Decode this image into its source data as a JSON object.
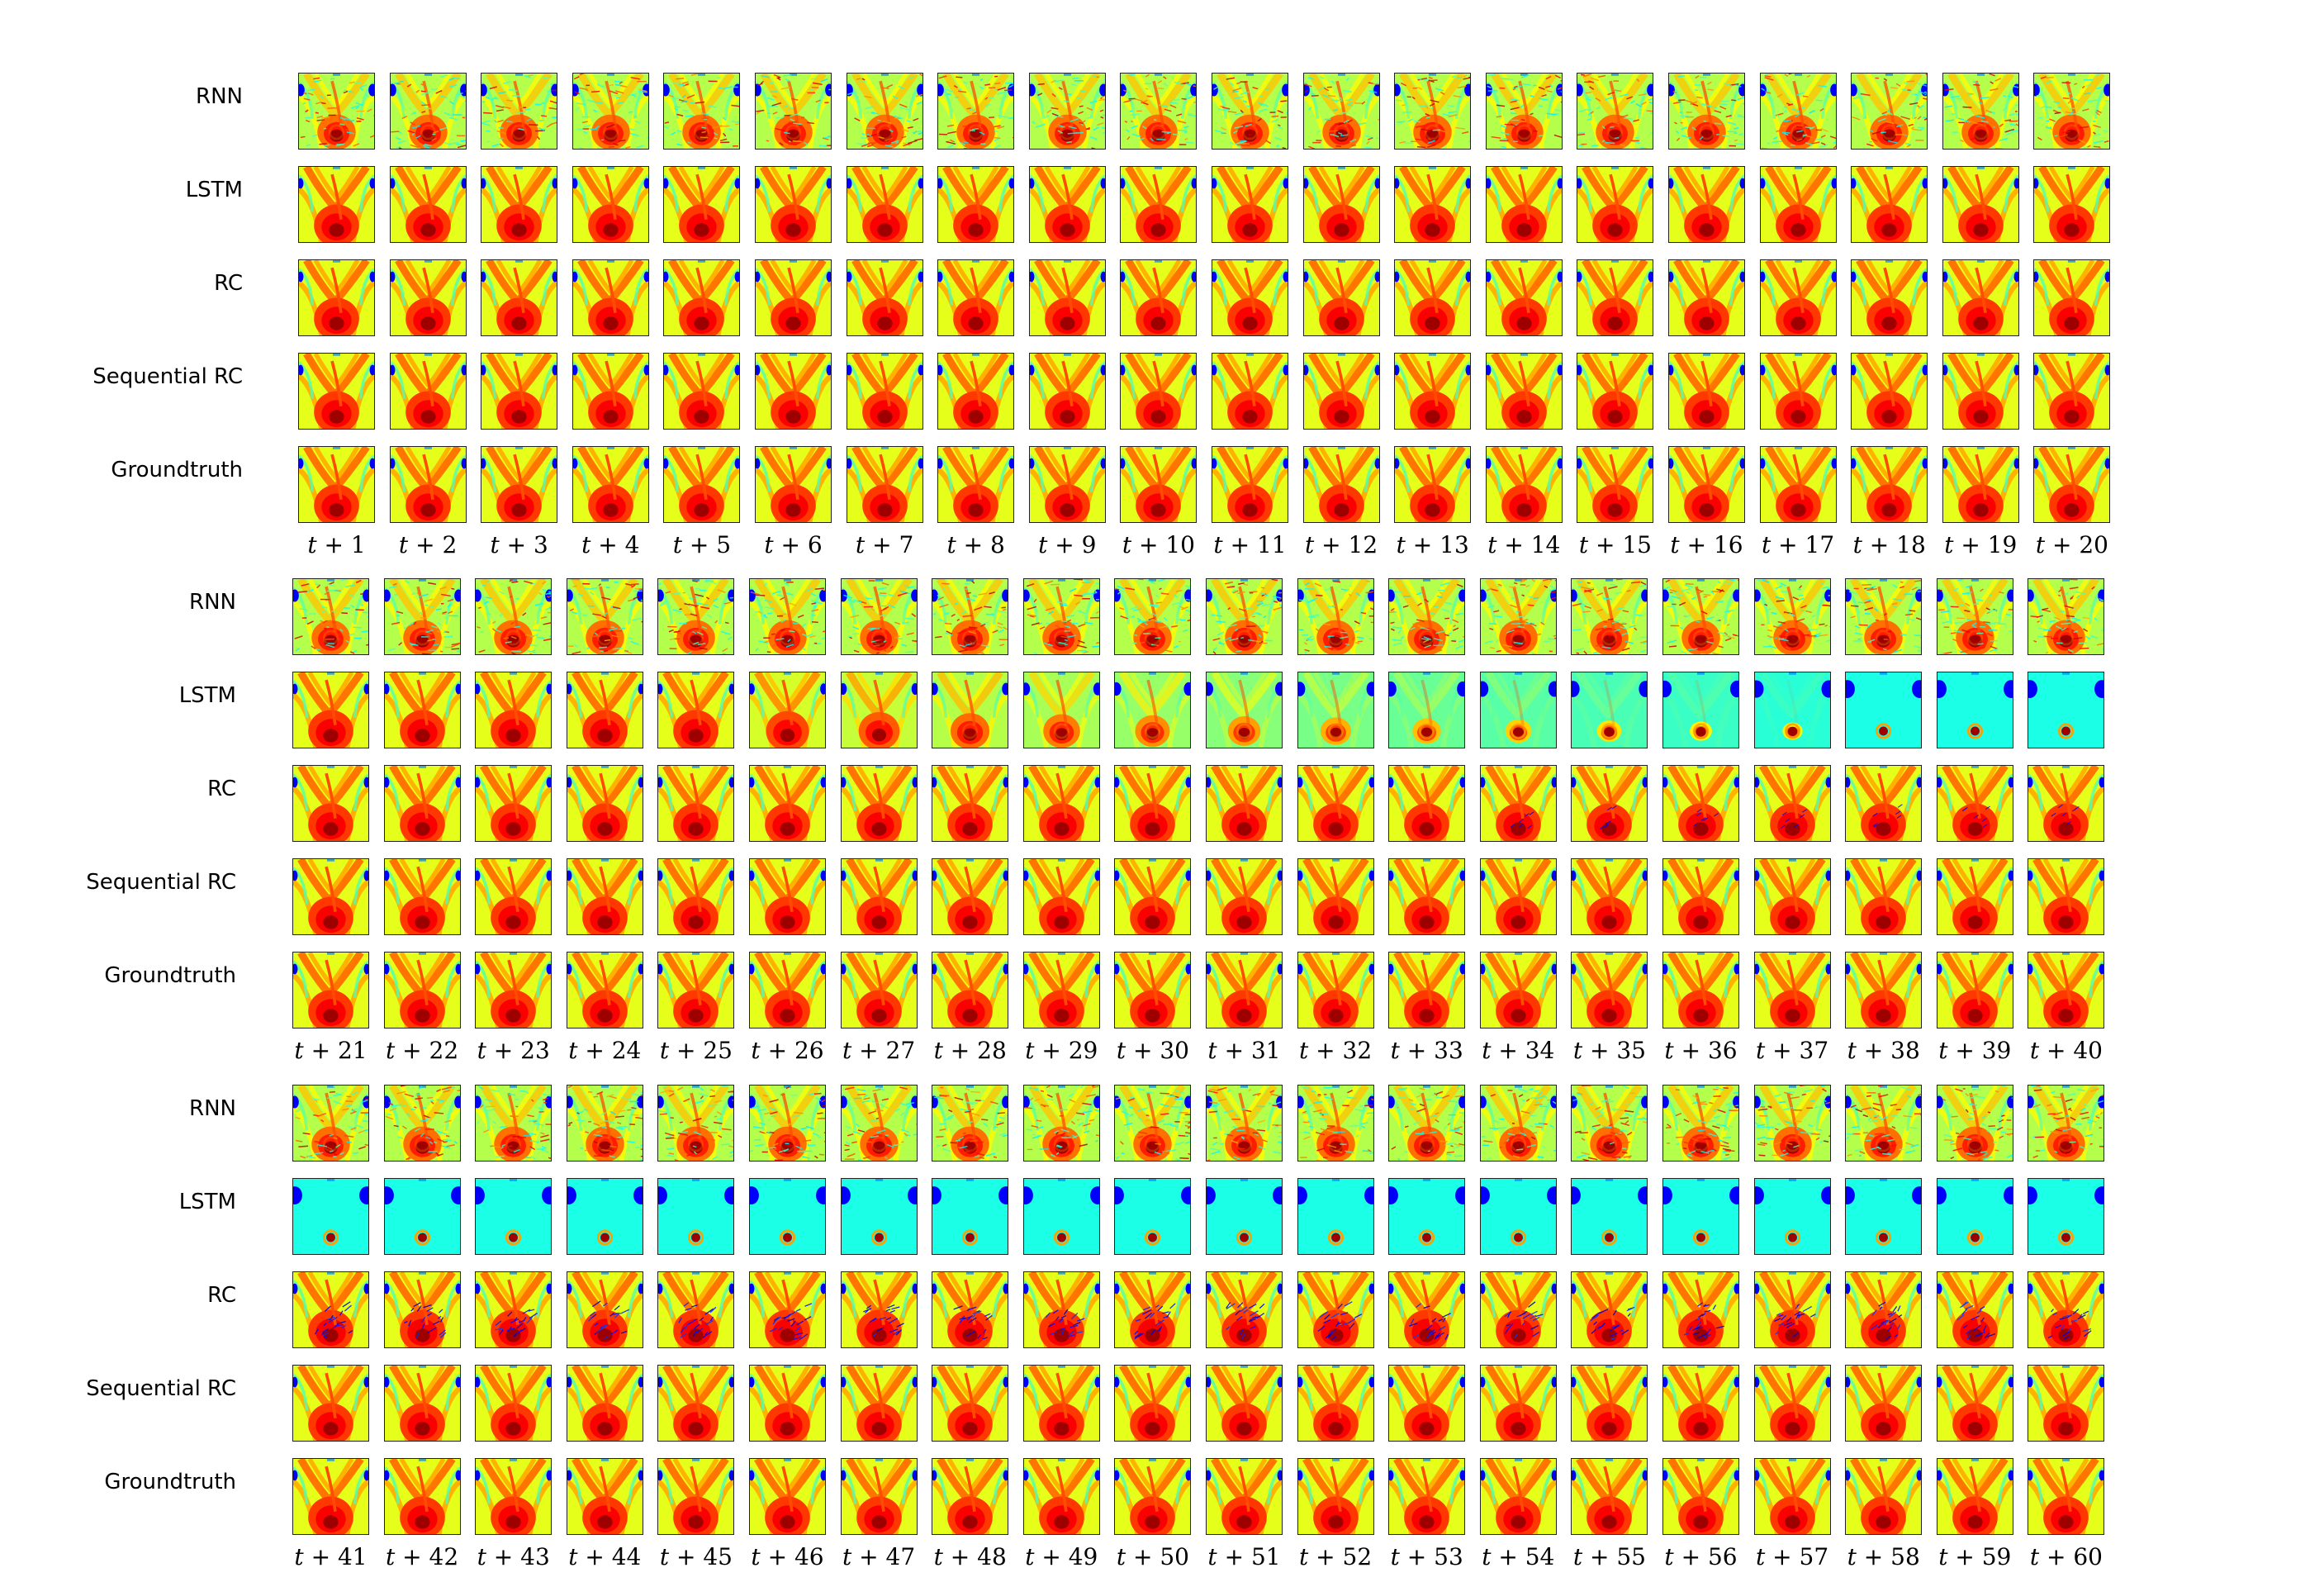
{
  "figure": {
    "row_labels": [
      "RNN",
      "LSTM",
      "RC",
      "Sequential RC",
      "Groundtruth"
    ],
    "blocks": [
      {
        "column_labels": [
          "t+1",
          "t+2",
          "t+3",
          "t+4",
          "t+5",
          "t+6",
          "t+7",
          "t+8",
          "t+9",
          "t+10",
          "t+11",
          "t+12",
          "t+13",
          "t+14",
          "t+15",
          "t+16",
          "t+17",
          "t+18",
          "t+19",
          "t+20"
        ],
        "row_states": {
          "RNN": "noisy",
          "LSTM": "similar-to-groundtruth",
          "RC": "similar-to-groundtruth",
          "Sequential RC": "similar-to-groundtruth",
          "Groundtruth": "reference"
        }
      },
      {
        "column_labels": [
          "t+21",
          "t+22",
          "t+23",
          "t+24",
          "t+25",
          "t+26",
          "t+27",
          "t+28",
          "t+29",
          "t+30",
          "t+31",
          "t+32",
          "t+33",
          "t+34",
          "t+35",
          "t+36",
          "t+37",
          "t+38",
          "t+39",
          "t+40"
        ],
        "row_states": {
          "RNN": "noisy",
          "LSTM": "progressively-washed-out",
          "RC": "similar-to-groundtruth-slight-artifacts-late",
          "Sequential RC": "similar-to-groundtruth",
          "Groundtruth": "reference"
        }
      },
      {
        "column_labels": [
          "t+41",
          "t+42",
          "t+43",
          "t+44",
          "t+45",
          "t+46",
          "t+47",
          "t+48",
          "t+49",
          "t+50",
          "t+51",
          "t+52",
          "t+53",
          "t+54",
          "t+55",
          "t+56",
          "t+57",
          "t+58",
          "t+59",
          "t+60"
        ],
        "row_states": {
          "RNN": "noisy",
          "LSTM": "washed-out-single-blob",
          "RC": "with-dark-artifacts",
          "Sequential RC": "similar-to-groundtruth",
          "Groundtruth": "reference"
        }
      }
    ],
    "colors": {
      "colormap": "jet",
      "background": "#ffffff",
      "tile_border": "#222222"
    }
  }
}
